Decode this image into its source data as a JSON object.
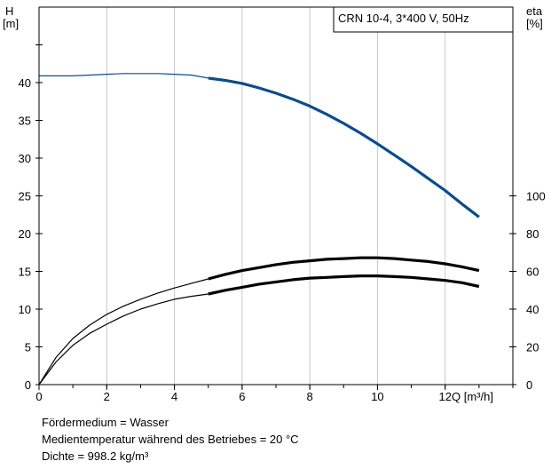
{
  "chart_data": {
    "type": "line",
    "legend_box": "CRN 10-4, 3*400 V, 50Hz",
    "x_axis": {
      "label": "Q [m³/h]",
      "range": [
        0,
        14
      ],
      "ticks": [
        0,
        2,
        4,
        6,
        8,
        10,
        12
      ]
    },
    "y_axis_left": {
      "label_line1": "H",
      "label_line2": "[m]",
      "range": [
        0,
        50
      ],
      "ticks": [
        0,
        5,
        10,
        15,
        20,
        25,
        30,
        35,
        40
      ]
    },
    "y_axis_right": {
      "label_line1": "eta",
      "label_line2": "[%]",
      "range": [
        0,
        0.5
      ],
      "ticks": [
        0,
        20,
        40,
        60,
        80,
        100
      ],
      "tick_positions_left_units": [
        0,
        5,
        10,
        15,
        20,
        25
      ]
    },
    "series": [
      {
        "color": "#0b4c8c",
        "axis": "left",
        "operating_from_x": 5,
        "x": [
          0,
          0.5,
          1,
          1.5,
          2,
          2.5,
          3,
          3.5,
          4,
          4.5,
          5,
          5.5,
          6,
          6.5,
          7,
          7.5,
          8,
          8.5,
          9,
          9.5,
          10,
          10.5,
          11,
          11.5,
          12,
          12.5,
          13
        ],
        "y": [
          40.9,
          40.9,
          40.9,
          41.0,
          41.1,
          41.2,
          41.2,
          41.2,
          41.1,
          41.0,
          40.6,
          40.3,
          39.9,
          39.3,
          38.6,
          37.8,
          36.9,
          35.8,
          34.6,
          33.3,
          31.9,
          30.4,
          28.9,
          27.3,
          25.7,
          23.9,
          22.2
        ]
      },
      {
        "color": "#000000",
        "axis": "left",
        "operating_from_x": 5,
        "x": [
          0,
          0.5,
          1,
          1.5,
          2,
          2.5,
          3,
          3.5,
          4,
          4.5,
          5,
          5.5,
          6,
          6.5,
          7,
          7.5,
          8,
          8.5,
          9,
          9.5,
          10,
          10.5,
          11,
          11.5,
          12,
          12.5,
          13
        ],
        "y": [
          0,
          3.6,
          6.1,
          7.9,
          9.3,
          10.4,
          11.3,
          12.1,
          12.8,
          13.4,
          14.0,
          14.6,
          15.1,
          15.5,
          15.9,
          16.2,
          16.4,
          16.6,
          16.7,
          16.8,
          16.8,
          16.7,
          16.5,
          16.3,
          16.0,
          15.6,
          15.1
        ]
      },
      {
        "color": "#000000",
        "axis": "left",
        "operating_from_x": 5,
        "x": [
          0,
          0.5,
          1,
          1.5,
          2,
          2.5,
          3,
          3.5,
          4,
          4.5,
          5,
          5.5,
          6,
          6.5,
          7,
          7.5,
          8,
          8.5,
          9,
          9.5,
          10,
          10.5,
          11,
          11.5,
          12,
          12.5,
          13
        ],
        "y": [
          0,
          3.0,
          5.2,
          6.8,
          8.0,
          9.1,
          10.0,
          10.7,
          11.3,
          11.7,
          12.0,
          12.5,
          12.9,
          13.3,
          13.6,
          13.9,
          14.1,
          14.2,
          14.3,
          14.4,
          14.4,
          14.3,
          14.2,
          14.0,
          13.8,
          13.5,
          13.0
        ]
      }
    ]
  },
  "notes": [
    "Fördermedium = Wasser",
    "Medientemperatur während des Betriebes = 20 °C",
    "Dichte = 998.2 kg/m³"
  ]
}
